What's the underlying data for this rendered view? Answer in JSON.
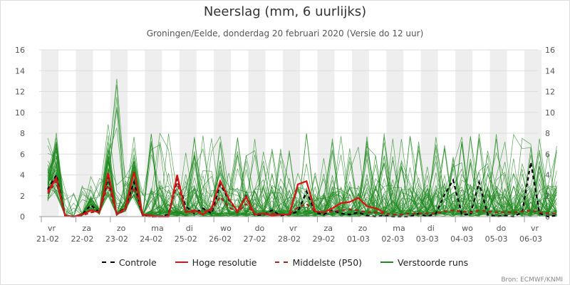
{
  "title": "Neerslag (mm, 6 uurlijks)",
  "subtitle": "Groningen/Eelde, donderdag 20 februari 2020 (Versie do 12 uur)",
  "credit": "Bron: ECMWF/KNMI",
  "colors": {
    "controle": "#000000",
    "hoge_resolutie": "#dd1111",
    "middelste": "#aa2222",
    "verstoorde": "#1f8a1f",
    "band": "#eeeeee",
    "grid": "#dddddd"
  },
  "legend": [
    {
      "label": "Controle",
      "style": "dashed",
      "color": "#000000"
    },
    {
      "label": "Hoge resolutie",
      "style": "solid",
      "color": "#dd1111"
    },
    {
      "label": "Middelste (P50)",
      "style": "dashed",
      "color": "#aa2222"
    },
    {
      "label": "Verstoorde runs",
      "style": "solid",
      "color": "#1f8a1f"
    }
  ],
  "chart_data": {
    "type": "line",
    "title": "Neerslag (mm, 6 uurlijks)",
    "subtitle": "Groningen/Eelde, donderdag 20 februari 2020 (Versie do 12 uur)",
    "ylim": [
      0,
      16
    ],
    "yticks": [
      0,
      2,
      4,
      6,
      8,
      10,
      12,
      14,
      16
    ],
    "x_step_hours": 6,
    "x_start": "2020-02-21 00:00",
    "days": [
      {
        "dow": "vr",
        "date": "21-02"
      },
      {
        "dow": "za",
        "date": "22-02"
      },
      {
        "dow": "zo",
        "date": "23-02"
      },
      {
        "dow": "ma",
        "date": "24-02"
      },
      {
        "dow": "di",
        "date": "25-02"
      },
      {
        "dow": "wo",
        "date": "26-02"
      },
      {
        "dow": "do",
        "date": "27-02"
      },
      {
        "dow": "vr",
        "date": "28-02"
      },
      {
        "dow": "za",
        "date": "29-02"
      },
      {
        "dow": "zo",
        "date": "01-03"
      },
      {
        "dow": "ma",
        "date": "02-03"
      },
      {
        "dow": "di",
        "date": "03-03"
      },
      {
        "dow": "wo",
        "date": "04-03"
      },
      {
        "dow": "do",
        "date": "05-03"
      },
      {
        "dow": "vr",
        "date": "06-03"
      }
    ],
    "series": [
      {
        "name": "Controle",
        "style": "dashed",
        "color": "#000000",
        "values": [
          2.6,
          4.0,
          0.1,
          0,
          0.2,
          1.1,
          0.4,
          3.8,
          0.2,
          0.9,
          3.3,
          0.1,
          0,
          0,
          0.2,
          3.6,
          1.0,
          0.3,
          0.8,
          0.3,
          3.1,
          1.6,
          0.5,
          2.0,
          0.1,
          0.2,
          0.6,
          0.1,
          0.2,
          0.5,
          2.4,
          0.4,
          0.2,
          0.6,
          0.3,
          0.2,
          0.4,
          0.1,
          0,
          0.1,
          0,
          0,
          0,
          0.3,
          0,
          0.3,
          2.1,
          3.5,
          0.2,
          0.2,
          3.3,
          0.2,
          0,
          0.1,
          0,
          0.4,
          5.2,
          0.3,
          0,
          0.1
        ]
      },
      {
        "name": "Hoge resolutie",
        "style": "solid",
        "color": "#dd1111",
        "values": [
          2.4,
          3.7,
          0.1,
          0,
          0.2,
          0.6,
          0.4,
          4.2,
          0.2,
          0.8,
          4.3,
          0.2,
          0.1,
          0,
          0,
          4.0,
          0.4,
          0.6,
          0.2,
          0.8,
          3.4,
          1.7,
          0.5,
          1.9,
          0.2,
          0.3,
          0.1,
          0.2,
          0.2,
          3.1,
          3.4,
          0.5,
          0.4,
          0.8,
          1.3,
          1.4,
          1.8,
          1.0,
          0.8,
          0.4
        ]
      },
      {
        "name": "Middelste (P50)",
        "style": "dashed",
        "color": "#aa2222",
        "values": [
          2.2,
          3.4,
          0.1,
          0,
          0.1,
          0.4,
          0.5,
          3.0,
          0.2,
          0.6,
          2.8,
          0.1,
          0,
          0,
          0.1,
          3.2,
          0.5,
          0.4,
          0.5,
          0.6,
          1.9,
          0.9,
          0.4,
          1.2,
          0.2,
          0.3,
          0.3,
          0.2,
          0.2,
          0.9,
          1.2,
          0.5,
          0.4,
          0.5,
          0.6,
          0.7,
          0.6,
          0.4,
          0.4,
          0.3,
          0.2,
          0.2,
          0.3,
          0.3,
          0.3,
          0.3,
          0.5,
          0.6,
          0.5,
          0.4,
          0.6,
          0.5,
          0.4,
          0.4,
          0.4,
          0.5,
          0.6,
          0.4,
          0.3,
          0.3
        ]
      }
    ],
    "ensemble": {
      "name": "Verstoorde runs",
      "members": 50,
      "color": "#1f8a1f",
      "peak_value": 14.0,
      "peak_day": "23-02"
    }
  }
}
